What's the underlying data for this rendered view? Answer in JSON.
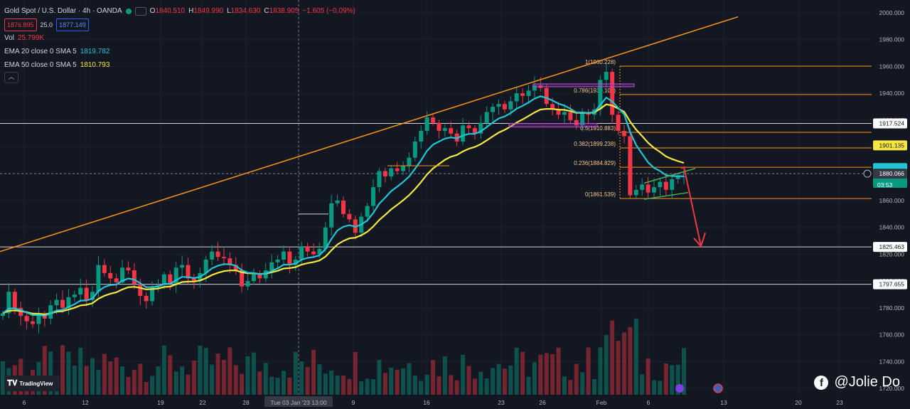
{
  "header": {
    "symbol": "Gold Spot / U.S. Dollar · 4h · OANDA",
    "o_label": "O",
    "o_value": "1840.510",
    "h_label": "H",
    "h_value": "1849.990",
    "l_label": "L",
    "l_value": "1834.630",
    "c_label": "C",
    "c_value": "1838.905",
    "change": "−1.605 (−0.09%)",
    "sell_price": "1876.895",
    "spread": "25.0",
    "buy_price": "1877.149"
  },
  "indicators": [
    {
      "label": "Vol",
      "value": "25.799K",
      "color": "#f23645"
    },
    {
      "label": "EMA 20 close 0 SMA 5",
      "value": "1819.782",
      "color": "#22c4d6"
    },
    {
      "label": "EMA 50 close 0 SMA 5",
      "value": "1810.793",
      "color": "#f5e642"
    }
  ],
  "chart_data": {
    "type": "candlestick",
    "y_axis": {
      "min": 1720,
      "max": 2000,
      "step": 20,
      "ticks": [
        "2000.000",
        "1980.000",
        "1960.000",
        "1940.000",
        "1920.000",
        "1900.000",
        "1880.000",
        "1860.000",
        "1840.000",
        "1820.000",
        "1800.000",
        "1780.000",
        "1760.000",
        "1740.000",
        "1720.000"
      ]
    },
    "x_axis": {
      "ticks": [
        "6",
        "12",
        "19",
        "22",
        "28",
        "Tue 03 Jan '23   13:00",
        "9",
        "16",
        "23",
        "26",
        "Feb",
        "6",
        "13",
        "20",
        "23"
      ]
    },
    "crosshair_label": "Tue 03 Jan '23   13:00",
    "fib_levels": [
      {
        "ratio": "1",
        "label": "1(1960.228)",
        "value": 1960.228
      },
      {
        "ratio": "0.786",
        "label": "0.786(1939.109)",
        "value": 1939.109
      },
      {
        "ratio": "0.5",
        "label": "0.5(1910.883)",
        "value": 1910.883
      },
      {
        "ratio": "0.382",
        "label": "0.382(1899.238)",
        "value": 1899.238
      },
      {
        "ratio": "0.236",
        "label": "0.236(1884.829)",
        "value": 1884.829
      },
      {
        "ratio": "0",
        "label": "0(1861.539)",
        "value": 1861.539
      }
    ],
    "horizontal_levels": [
      {
        "label": "1917.524",
        "value": 1917.524
      },
      {
        "label": "1825.463",
        "value": 1825.463
      },
      {
        "label": "1797.655",
        "value": 1797.655
      }
    ],
    "price_labels": [
      {
        "label": "1901.135",
        "value": 1901.135,
        "color": "#f5e642"
      },
      {
        "label": "1880.066",
        "value": 1880.066,
        "color": "#131722"
      },
      {
        "label": "03:53",
        "value": 1877.0,
        "color": "#089981"
      }
    ],
    "close_series": [
      1776,
      1792,
      1780,
      1774,
      1770,
      1768,
      1775,
      1772,
      1782,
      1786,
      1780,
      1788,
      1790,
      1795,
      1786,
      1792,
      1812,
      1806,
      1802,
      1799,
      1810,
      1808,
      1798,
      1789,
      1785,
      1796,
      1797,
      1805,
      1798,
      1810,
      1812,
      1802,
      1800,
      1806,
      1816,
      1822,
      1818,
      1817,
      1812,
      1808,
      1796,
      1800,
      1805,
      1802,
      1808,
      1814,
      1816,
      1822,
      1812,
      1816,
      1826,
      1822,
      1820,
      1824,
      1840,
      1858,
      1860,
      1850,
      1846,
      1836,
      1848,
      1856,
      1870,
      1882,
      1878,
      1884,
      1882,
      1886,
      1892,
      1904,
      1912,
      1922,
      1918,
      1912,
      1914,
      1910,
      1904,
      1916,
      1914,
      1910,
      1918,
      1926,
      1930,
      1932,
      1928,
      1934,
      1940,
      1938,
      1942,
      1946,
      1944,
      1932,
      1928,
      1924,
      1926,
      1920,
      1916,
      1926,
      1924,
      1928,
      1950,
      1956,
      1924,
      1912,
      1908,
      1864,
      1868,
      1872,
      1866,
      1870,
      1874,
      1868,
      1876,
      1878,
      1878
    ]
  },
  "branding": {
    "tv_logo_text": "TradingView",
    "watermark": "@Jolie Do",
    "watermark_icon": "facebook-icon"
  }
}
